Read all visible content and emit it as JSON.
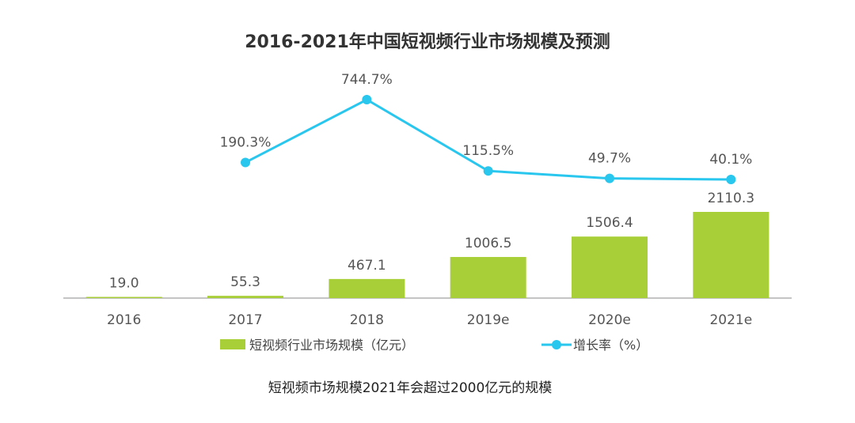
{
  "colors": {
    "bar": "#a9cf38",
    "line": "#29c6ee",
    "axis": "#888888"
  },
  "chart_data": {
    "type": "bar",
    "title": "2016-2021年中国短视频行业市场规模及预测",
    "categories": [
      "2016",
      "2017",
      "2018",
      "2019e",
      "2020e",
      "2021e"
    ],
    "series": [
      {
        "name": "短视频行业市场规模（亿元）",
        "kind": "bar",
        "values": [
          19.0,
          55.3,
          467.1,
          1006.5,
          1506.4,
          2110.3
        ],
        "labels": [
          "19.0",
          "55.3",
          "467.1",
          "1006.5",
          "1506.4",
          "2110.3"
        ]
      },
      {
        "name": "增长率（%）",
        "kind": "line",
        "values": [
          null,
          190.3,
          744.7,
          115.5,
          49.7,
          40.1
        ],
        "labels": [
          "",
          "190.3%",
          "744.7%",
          "115.5%",
          "49.7%",
          "40.1%"
        ]
      }
    ],
    "bar_ylim": [
      0,
      2110.3
    ],
    "line_ylim": [
      40.1,
      744.7
    ],
    "xlabel": "",
    "ylabel": "",
    "legend": "bottom",
    "grid": false
  },
  "footnote": "短视频市场规模2021年会超过2000亿元的规模"
}
